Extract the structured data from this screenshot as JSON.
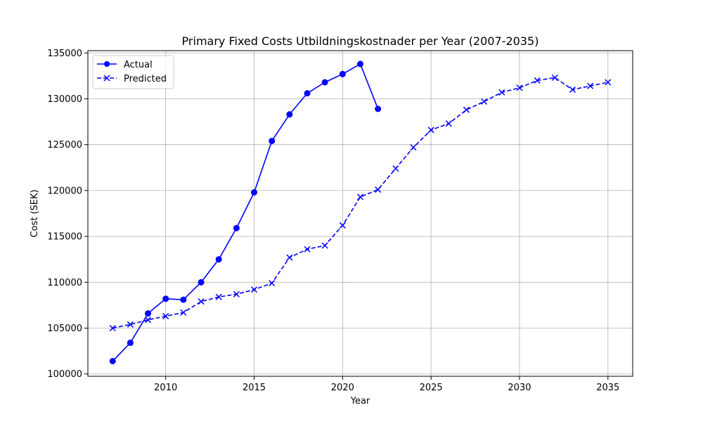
{
  "chart_data": {
    "type": "line",
    "title": "Primary Fixed Costs Utbildningskostnader per Year (2007-2035)",
    "xlabel": "Year",
    "ylabel": "Cost (SEK)",
    "xlim": [
      2005.6,
      2036.4
    ],
    "ylim": [
      99750,
      135250
    ],
    "xticks": [
      2010,
      2015,
      2020,
      2025,
      2030,
      2035
    ],
    "yticks": [
      100000,
      105000,
      110000,
      115000,
      120000,
      125000,
      130000,
      135000
    ],
    "grid": true,
    "legend_position": "top-left",
    "series": [
      {
        "name": "Actual",
        "color": "#0000ff",
        "line_style": "solid",
        "marker": "circle",
        "x": [
          2007,
          2008,
          2009,
          2010,
          2011,
          2012,
          2013,
          2014,
          2015,
          2016,
          2017,
          2018,
          2019,
          2020,
          2021,
          2022
        ],
        "y": [
          101400,
          103400,
          106600,
          108200,
          108100,
          110000,
          112500,
          115900,
          119800,
          125400,
          128300,
          130600,
          131800,
          132700,
          133800,
          128900
        ]
      },
      {
        "name": "Predicted",
        "color": "#0000ff",
        "line_style": "dashed",
        "marker": "x",
        "x": [
          2007,
          2008,
          2009,
          2010,
          2011,
          2012,
          2013,
          2014,
          2015,
          2016,
          2017,
          2018,
          2019,
          2020,
          2021,
          2022,
          2023,
          2024,
          2025,
          2026,
          2027,
          2028,
          2029,
          2030,
          2031,
          2032,
          2033,
          2034,
          2035
        ],
        "y": [
          105000,
          105400,
          105900,
          106300,
          106700,
          107900,
          108400,
          108700,
          109200,
          109900,
          112700,
          113600,
          114000,
          116200,
          119300,
          120100,
          122400,
          124700,
          126600,
          127300,
          128800,
          129700,
          130700,
          131200,
          132000,
          132300,
          131000,
          131400,
          131800
        ]
      }
    ]
  }
}
